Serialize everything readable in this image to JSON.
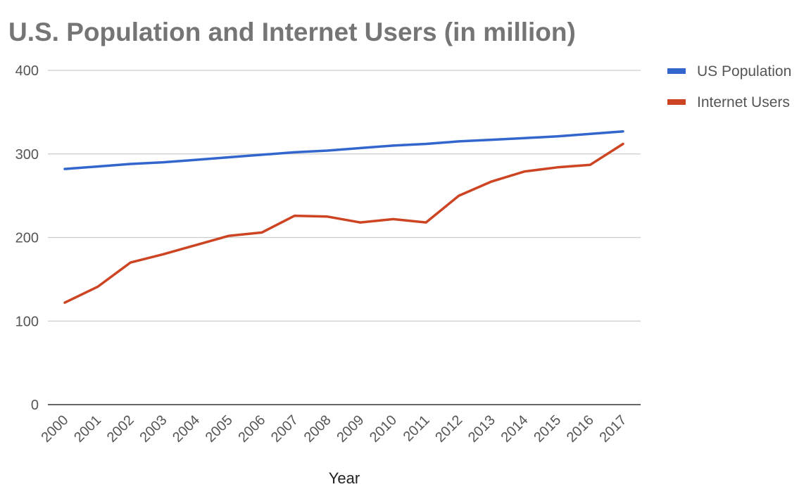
{
  "chart_data": {
    "type": "line",
    "title": "U.S. Population and Internet Users (in million)",
    "xlabel": "Year",
    "ylabel": "",
    "ylim": [
      0,
      400
    ],
    "yticks": [
      "0",
      "100",
      "200",
      "300",
      "400"
    ],
    "categories": [
      "2000",
      "2001",
      "2002",
      "2003",
      "2004",
      "2005",
      "2006",
      "2007",
      "2008",
      "2009",
      "2010",
      "2011",
      "2012",
      "2013",
      "2014",
      "2015",
      "2016",
      "2017"
    ],
    "grid": true,
    "legend_position": "right",
    "series": [
      {
        "name": "US Population",
        "color": "#3366cc",
        "values": [
          282,
          285,
          288,
          290,
          293,
          296,
          299,
          302,
          304,
          307,
          310,
          312,
          315,
          317,
          319,
          321,
          324,
          327
        ]
      },
      {
        "name": "Internet Users",
        "color": "#cc4422",
        "values": [
          122,
          141,
          170,
          180,
          191,
          202,
          206,
          226,
          225,
          218,
          222,
          218,
          250,
          267,
          279,
          284,
          287,
          312
        ]
      }
    ]
  }
}
